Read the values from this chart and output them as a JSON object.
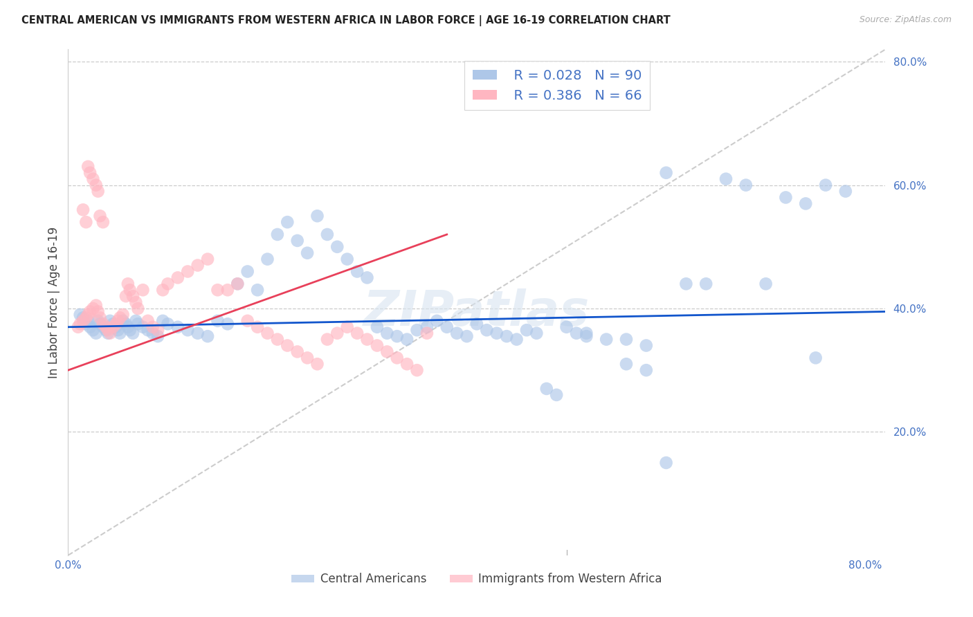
{
  "title": "CENTRAL AMERICAN VS IMMIGRANTS FROM WESTERN AFRICA IN LABOR FORCE | AGE 16-19 CORRELATION CHART",
  "source_text": "Source: ZipAtlas.com",
  "ylabel": "In Labor Force | Age 16-19",
  "legend_label1": "Central Americans",
  "legend_label2": "Immigrants from Western Africa",
  "R1": "0.028",
  "N1": "90",
  "R2": "0.386",
  "N2": "66",
  "color1": "#aec7e8",
  "color2": "#ffb6c1",
  "line_color1": "#1155cc",
  "line_color2": "#e8405a",
  "diagonal_color": "#cccccc",
  "tick_color": "#4472c4",
  "watermark": "ZIPatlas",
  "xlim": [
    0.0,
    0.82
  ],
  "ylim": [
    0.0,
    0.82
  ],
  "blue_x": [
    0.012,
    0.015,
    0.018,
    0.02,
    0.022,
    0.025,
    0.028,
    0.03,
    0.032,
    0.035,
    0.038,
    0.04,
    0.042,
    0.045,
    0.048,
    0.05,
    0.052,
    0.055,
    0.058,
    0.06,
    0.062,
    0.065,
    0.068,
    0.07,
    0.075,
    0.08,
    0.085,
    0.09,
    0.095,
    0.1,
    0.11,
    0.12,
    0.13,
    0.14,
    0.15,
    0.16,
    0.17,
    0.18,
    0.19,
    0.2,
    0.21,
    0.22,
    0.23,
    0.24,
    0.25,
    0.26,
    0.27,
    0.28,
    0.29,
    0.3,
    0.31,
    0.32,
    0.33,
    0.34,
    0.35,
    0.36,
    0.37,
    0.38,
    0.39,
    0.4,
    0.41,
    0.42,
    0.43,
    0.44,
    0.45,
    0.46,
    0.47,
    0.48,
    0.49,
    0.5,
    0.51,
    0.52,
    0.54,
    0.56,
    0.58,
    0.6,
    0.62,
    0.64,
    0.66,
    0.68,
    0.7,
    0.72,
    0.74,
    0.76,
    0.78,
    0.52,
    0.56,
    0.58,
    0.6,
    0.75
  ],
  "blue_y": [
    0.39,
    0.385,
    0.375,
    0.38,
    0.37,
    0.365,
    0.36,
    0.38,
    0.375,
    0.37,
    0.365,
    0.36,
    0.38,
    0.375,
    0.37,
    0.365,
    0.36,
    0.38,
    0.375,
    0.37,
    0.365,
    0.36,
    0.38,
    0.375,
    0.37,
    0.365,
    0.36,
    0.355,
    0.38,
    0.375,
    0.37,
    0.365,
    0.36,
    0.355,
    0.38,
    0.375,
    0.44,
    0.46,
    0.43,
    0.48,
    0.52,
    0.54,
    0.51,
    0.49,
    0.55,
    0.52,
    0.5,
    0.48,
    0.46,
    0.45,
    0.37,
    0.36,
    0.355,
    0.35,
    0.365,
    0.37,
    0.38,
    0.37,
    0.36,
    0.355,
    0.375,
    0.365,
    0.36,
    0.355,
    0.35,
    0.365,
    0.36,
    0.27,
    0.26,
    0.37,
    0.36,
    0.355,
    0.35,
    0.31,
    0.3,
    0.62,
    0.44,
    0.44,
    0.61,
    0.6,
    0.44,
    0.58,
    0.57,
    0.6,
    0.59,
    0.36,
    0.35,
    0.34,
    0.15,
    0.32
  ],
  "pink_x": [
    0.01,
    0.012,
    0.015,
    0.018,
    0.02,
    0.022,
    0.025,
    0.028,
    0.03,
    0.032,
    0.035,
    0.038,
    0.04,
    0.042,
    0.045,
    0.048,
    0.05,
    0.052,
    0.055,
    0.058,
    0.06,
    0.062,
    0.065,
    0.068,
    0.07,
    0.075,
    0.08,
    0.085,
    0.09,
    0.095,
    0.1,
    0.11,
    0.12,
    0.13,
    0.14,
    0.15,
    0.16,
    0.17,
    0.18,
    0.19,
    0.2,
    0.21,
    0.22,
    0.23,
    0.24,
    0.25,
    0.26,
    0.27,
    0.28,
    0.29,
    0.3,
    0.31,
    0.32,
    0.33,
    0.34,
    0.35,
    0.36,
    0.015,
    0.018,
    0.02,
    0.022,
    0.025,
    0.028,
    0.03,
    0.032,
    0.035
  ],
  "pink_y": [
    0.37,
    0.375,
    0.38,
    0.385,
    0.39,
    0.395,
    0.4,
    0.405,
    0.395,
    0.385,
    0.375,
    0.37,
    0.365,
    0.36,
    0.37,
    0.375,
    0.38,
    0.385,
    0.39,
    0.42,
    0.44,
    0.43,
    0.42,
    0.41,
    0.4,
    0.43,
    0.38,
    0.37,
    0.365,
    0.43,
    0.44,
    0.45,
    0.46,
    0.47,
    0.48,
    0.43,
    0.43,
    0.44,
    0.38,
    0.37,
    0.36,
    0.35,
    0.34,
    0.33,
    0.32,
    0.31,
    0.35,
    0.36,
    0.37,
    0.36,
    0.35,
    0.34,
    0.33,
    0.32,
    0.31,
    0.3,
    0.36,
    0.56,
    0.54,
    0.63,
    0.62,
    0.61,
    0.6,
    0.59,
    0.55,
    0.54
  ],
  "blue_trendline_x": [
    0.0,
    0.82
  ],
  "blue_trendline_y": [
    0.37,
    0.395
  ],
  "pink_trendline_x": [
    0.0,
    0.38
  ],
  "pink_trendline_y": [
    0.3,
    0.52
  ]
}
